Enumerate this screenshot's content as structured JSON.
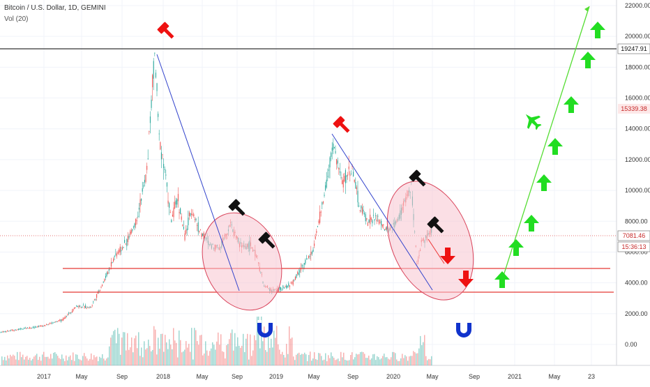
{
  "header": {
    "ticker": "Bitcoin / U.S. Dollar, 1D, GEMINI",
    "volume_label": "Vol (20)"
  },
  "chart_data": {
    "type": "line",
    "x": [
      "2017-01",
      "2017-05",
      "2017-09",
      "2018-01",
      "2018-05",
      "2018-09",
      "2019-01",
      "2019-05",
      "2019-09",
      "2020-01",
      "2020-05",
      "2020-09",
      "2021-01",
      "2021-05",
      "2021-09"
    ],
    "x_tick_labels": [
      "2017",
      "May",
      "Sep",
      "2018",
      "May",
      "Sep",
      "2019",
      "May",
      "Sep",
      "2020",
      "May",
      "Sep",
      "2021",
      "May",
      "23"
    ],
    "y_tick_labels": [
      "22000.00",
      "20000.00",
      "18000.00",
      "16000.00",
      "14000.00",
      "12000.00",
      "10000.00",
      "8000.00",
      "6000.00",
      "4000.00",
      "2000.00",
      "0.00"
    ],
    "ylim": [
      -1200,
      22400
    ],
    "series": [
      {
        "values": [
          [
            0,
            800
          ],
          [
            30,
            1000
          ],
          [
            60,
            1200
          ],
          [
            90,
            1600
          ],
          [
            110,
            2500
          ],
          [
            130,
            2400
          ],
          [
            150,
            4200
          ],
          [
            165,
            5800
          ],
          [
            180,
            6500
          ],
          [
            195,
            8000
          ],
          [
            210,
            11000
          ],
          [
            222,
            19000
          ],
          [
            228,
            13500
          ],
          [
            236,
            11500
          ],
          [
            245,
            8000
          ],
          [
            255,
            9500
          ],
          [
            265,
            7000
          ],
          [
            275,
            8800
          ],
          [
            285,
            7500
          ],
          [
            300,
            6500
          ],
          [
            315,
            6300
          ],
          [
            330,
            7800
          ],
          [
            345,
            6400
          ],
          [
            360,
            6400
          ],
          [
            370,
            5500
          ],
          [
            378,
            3800
          ],
          [
            390,
            3500
          ],
          [
            405,
            3600
          ],
          [
            420,
            4000
          ],
          [
            432,
            5000
          ],
          [
            448,
            6000
          ],
          [
            460,
            8500
          ],
          [
            470,
            11000
          ],
          [
            478,
            13000
          ],
          [
            490,
            10500
          ],
          [
            505,
            11500
          ],
          [
            515,
            9000
          ],
          [
            528,
            8000
          ],
          [
            540,
            8200
          ],
          [
            555,
            7300
          ],
          [
            570,
            8000
          ],
          [
            582,
            9500
          ],
          [
            590,
            10200
          ],
          [
            598,
            5000
          ],
          [
            605,
            6800
          ],
          [
            612,
            7000
          ],
          [
            620,
            7500
          ]
        ]
      }
    ],
    "annotations": {
      "price_levels": [
        "19247.91",
        "15339.38",
        "7081.46"
      ],
      "countdown": "15:36:13"
    },
    "colors": {
      "up": "#26a69a",
      "down": "#ef5350",
      "trend": "#3344cc",
      "support": "#e53935",
      "projection": "#55dd33",
      "ellipse_fill": "#f7c5cf",
      "ellipse_stroke": "#d9435a",
      "hammer_red": "#ee1111",
      "hammer_black": "#111111",
      "arrow_green": "#22dd22",
      "magnet_blue": "#1133cc"
    },
    "icons": [
      "hammer-icon",
      "up-arrow-icon",
      "down-arrow-icon",
      "airplane-icon",
      "magnet-icon"
    ]
  }
}
